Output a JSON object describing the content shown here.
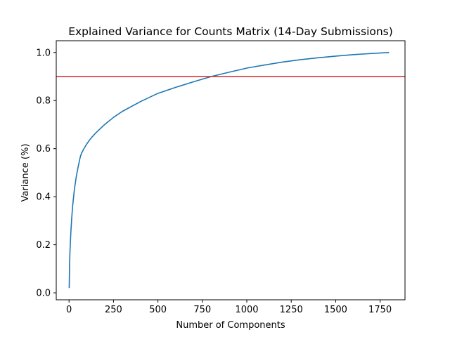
{
  "chart_data": {
    "type": "line",
    "title": "Explained Variance for Counts Matrix (14-Day Submissions)",
    "xlabel": "Number of Components",
    "ylabel": "Variance (%)",
    "xlim": [
      -72,
      1890
    ],
    "ylim": [
      -0.029,
      1.049
    ],
    "x_ticks": [
      0,
      250,
      500,
      750,
      1000,
      1250,
      1500,
      1750
    ],
    "y_ticks": [
      0.0,
      0.2,
      0.4,
      0.6,
      0.8,
      1.0
    ],
    "grid": false,
    "series": [
      {
        "color": "#1f77b4",
        "x": [
          1,
          3,
          5,
          10,
          15,
          20,
          30,
          40,
          50,
          60,
          65,
          70,
          80,
          100,
          125,
          150,
          200,
          250,
          300,
          400,
          500,
          600,
          700,
          800,
          900,
          1000,
          1100,
          1200,
          1300,
          1400,
          1500,
          1600,
          1700,
          1800
        ],
        "y": [
          0.02,
          0.12,
          0.17,
          0.25,
          0.31,
          0.36,
          0.43,
          0.48,
          0.52,
          0.555,
          0.57,
          0.58,
          0.595,
          0.62,
          0.645,
          0.665,
          0.7,
          0.73,
          0.755,
          0.795,
          0.83,
          0.855,
          0.878,
          0.9,
          0.918,
          0.935,
          0.948,
          0.96,
          0.97,
          0.978,
          0.985,
          0.991,
          0.996,
          1.0
        ]
      }
    ],
    "hlines": [
      {
        "y": 0.9,
        "color": "#d62728"
      }
    ]
  }
}
